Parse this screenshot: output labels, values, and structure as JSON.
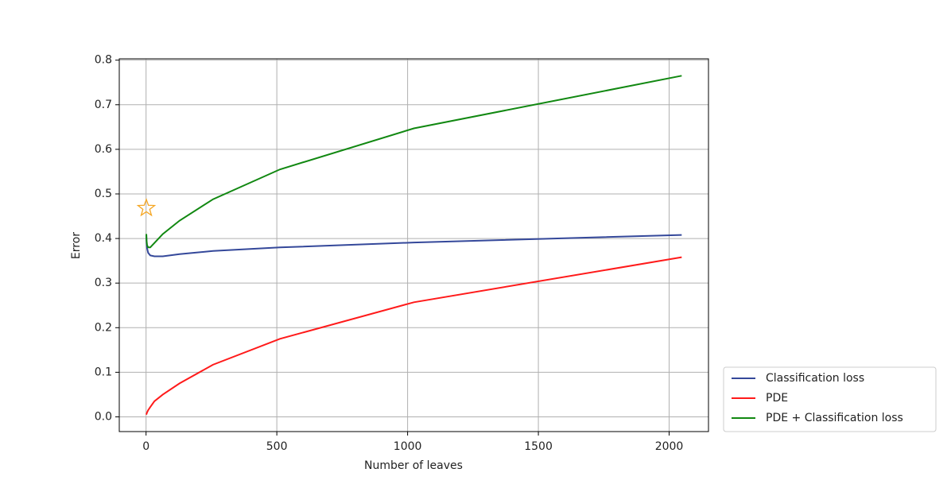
{
  "chart_data": {
    "type": "line",
    "x_label": "Number of leaves",
    "y_label": "Error",
    "x": [
      1,
      2,
      4,
      8,
      16,
      32,
      64,
      128,
      256,
      512,
      1024,
      2048
    ],
    "series": [
      {
        "name": "Classification loss",
        "color": "#34489a",
        "values": [
          0.41,
          0.39,
          0.378,
          0.368,
          0.362,
          0.36,
          0.36,
          0.365,
          0.372,
          0.38,
          0.391,
          0.408
        ]
      },
      {
        "name": "PDE",
        "color": "#ff1a1a",
        "values": [
          0.005,
          0.007,
          0.01,
          0.015,
          0.022,
          0.035,
          0.05,
          0.075,
          0.117,
          0.175,
          0.257,
          0.358
        ]
      },
      {
        "name": "PDE + Classification loss",
        "color": "#118811",
        "values": [
          0.41,
          0.395,
          0.385,
          0.38,
          0.38,
          0.39,
          0.41,
          0.44,
          0.488,
          0.555,
          0.647,
          0.765
        ]
      }
    ],
    "star": {
      "x": 1,
      "y": 0.468,
      "color": "#f5a623"
    },
    "xlim": [
      -102.4,
      2150.4
    ],
    "ylim": [
      -0.033,
      0.803
    ],
    "xticks": [
      0,
      500,
      1000,
      1500,
      2000
    ],
    "yticks": [
      {
        "value": 0,
        "label": "0.0"
      },
      0.1,
      0.2,
      0.3,
      0.4,
      0.5,
      0.6,
      0.7,
      0.8
    ],
    "grid": true,
    "legend": "outside lower right"
  }
}
